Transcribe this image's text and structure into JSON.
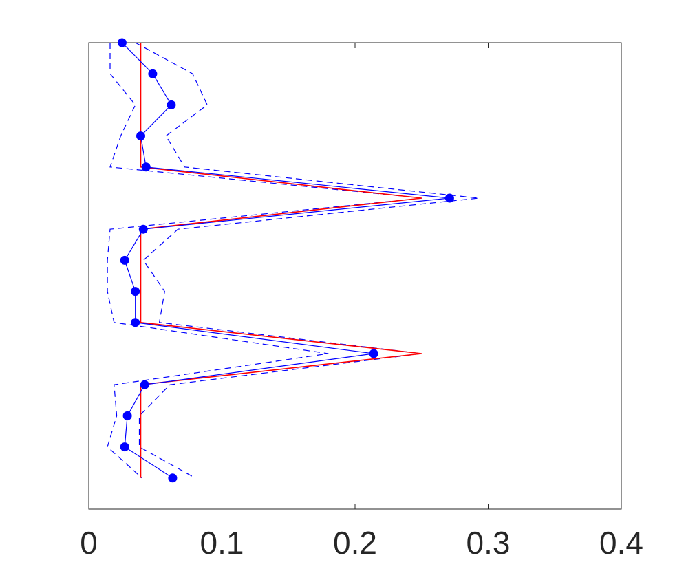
{
  "chart_data": {
    "type": "line",
    "orientation": "horizontal-values",
    "xlim": [
      0,
      0.4
    ],
    "x_ticks": [
      0,
      0.1,
      0.2,
      0.3,
      0.4
    ],
    "x_tick_labels": [
      "0",
      "0.1",
      "0.2",
      "0.3",
      "0.4"
    ],
    "y_count": 15,
    "grid": false,
    "series": [
      {
        "style": "markers-solid",
        "color": "#0000ff",
        "values": [
          0.025,
          0.048,
          0.062,
          0.039,
          0.043,
          0.271,
          0.041,
          0.027,
          0.035,
          0.035,
          0.214,
          0.042,
          0.029,
          0.027,
          0.063
        ]
      },
      {
        "style": "dashed",
        "color": "#0000ff",
        "values": [
          0.016,
          0.016,
          0.035,
          0.024,
          0.016,
          0.251,
          0.016,
          0.014,
          0.014,
          0.019,
          0.18,
          0.019,
          0.021,
          0.014,
          0.04
        ]
      },
      {
        "style": "dashed",
        "color": "#0000ff",
        "values": [
          0.035,
          0.078,
          0.089,
          0.058,
          0.072,
          0.293,
          0.067,
          0.041,
          0.057,
          0.053,
          0.25,
          0.061,
          0.038,
          0.038,
          0.08
        ]
      },
      {
        "style": "solid",
        "color": "#ff0000",
        "values": [
          0.039,
          0.039,
          0.039,
          0.039,
          0.039,
          0.25,
          0.039,
          0.039,
          0.039,
          0.039,
          0.25,
          0.039,
          0.039,
          0.039,
          0.039
        ]
      }
    ]
  }
}
